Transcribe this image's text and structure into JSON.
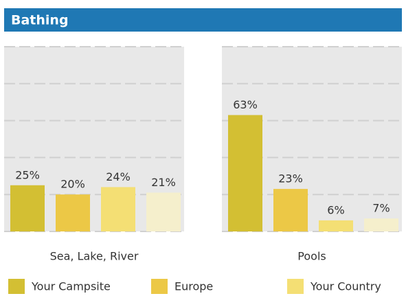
{
  "chart_data": {
    "type": "bar",
    "title": "Bathing",
    "categories": [
      "Sea, Lake, River",
      "Pools"
    ],
    "series": [
      {
        "name": "Your Campsite",
        "color": "#d3bf33",
        "values": [
          25,
          63
        ],
        "value_labels": [
          "25%",
          "63%"
        ]
      },
      {
        "name": "Europe",
        "color": "#ecc846",
        "values": [
          20,
          23
        ],
        "value_labels": [
          "20%",
          "23%"
        ]
      },
      {
        "name": "Your Country",
        "color": "#f4df74",
        "values": [
          24,
          6
        ],
        "value_labels": [
          "24%",
          "6%"
        ]
      },
      {
        "color": "#f5efcc",
        "values": [
          21,
          7
        ],
        "value_labels": [
          "21%",
          "7%"
        ]
      }
    ],
    "ylim": [
      0,
      100
    ],
    "yticks": [
      0,
      20,
      40,
      60,
      80,
      100
    ],
    "grid": true
  }
}
